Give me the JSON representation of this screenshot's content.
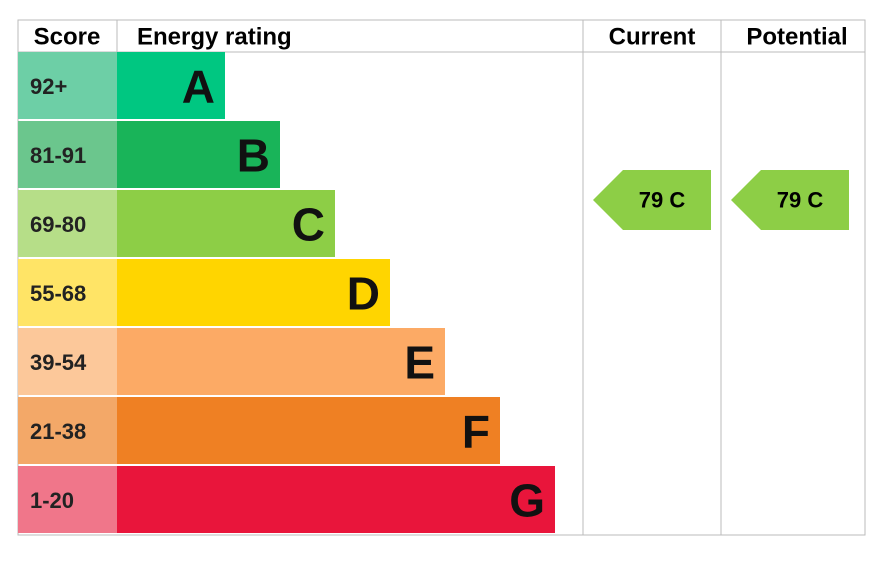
{
  "header": {
    "score": "Score",
    "energy_rating": "Energy rating",
    "current": "Current",
    "potential": "Potential"
  },
  "bands": [
    {
      "score": "92+",
      "letter": "A",
      "color": "#00c781",
      "score_color": "#6dcfa6"
    },
    {
      "score": "81-91",
      "letter": "B",
      "color": "#19b459",
      "score_color": "#6bc68d"
    },
    {
      "score": "69-80",
      "letter": "C",
      "color": "#8dce46",
      "score_color": "#b6de88"
    },
    {
      "score": "55-68",
      "letter": "D",
      "color": "#ffd500",
      "score_color": "#ffe466"
    },
    {
      "score": "39-54",
      "letter": "E",
      "color": "#fcaa65",
      "score_color": "#fcc89a"
    },
    {
      "score": "21-38",
      "letter": "F",
      "color": "#ef8023",
      "score_color": "#f3a868"
    },
    {
      "score": "1-20",
      "letter": "G",
      "color": "#e9153b",
      "score_color": "#f0768a"
    }
  ],
  "current": {
    "label": "79 C",
    "color": "#8dce46"
  },
  "potential": {
    "label": "79 C",
    "color": "#8dce46"
  }
}
